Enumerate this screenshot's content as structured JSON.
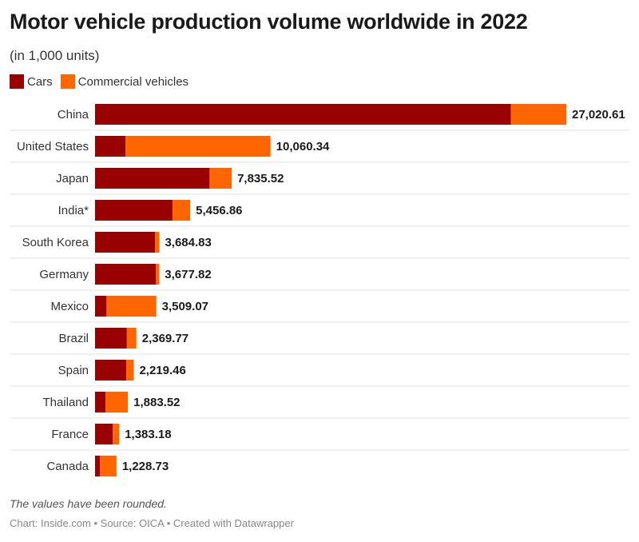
{
  "title": "Motor vehicle production volume worldwide in 2022",
  "subtitle": "(in 1,000 units)",
  "legend": [
    {
      "label": "Cars",
      "color": "#990000"
    },
    {
      "label": "Commercial vehicles",
      "color": "#ff6600"
    }
  ],
  "note": "The values have been rounded.",
  "footer": "Chart: Inside.com • Source: OICA • Created with Datawrapper",
  "chart_data": {
    "type": "bar",
    "orientation": "horizontal",
    "stacked": true,
    "categories": [
      "China",
      "United States",
      "Japan",
      "India*",
      "South Korea",
      "Germany",
      "Mexico",
      "Brazil",
      "Spain",
      "Thailand",
      "France",
      "Canada"
    ],
    "series": [
      {
        "name": "Cars",
        "color": "#990000",
        "values": [
          23836.1,
          1751.7,
          6566.4,
          4439.0,
          3438.4,
          3480.4,
          658.0,
          1824.8,
          1785.4,
          594.0,
          1010.5,
          289.4
        ]
      },
      {
        "name": "Commercial vehicles",
        "color": "#ff6600",
        "values": [
          3184.5,
          8308.6,
          1269.1,
          1017.9,
          246.4,
          197.4,
          2851.1,
          545.0,
          434.1,
          1289.5,
          372.7,
          939.3
        ]
      }
    ],
    "totals": [
      "27,020.61",
      "10,060.34",
      "7,835.52",
      "5,456.86",
      "3,684.83",
      "3,677.82",
      "3,509.07",
      "2,369.77",
      "2,219.46",
      "1,883.52",
      "1,383.18",
      "1,228.73"
    ],
    "xlim": [
      0,
      27020.61
    ],
    "grid": false,
    "legend_position": "top-left"
  }
}
